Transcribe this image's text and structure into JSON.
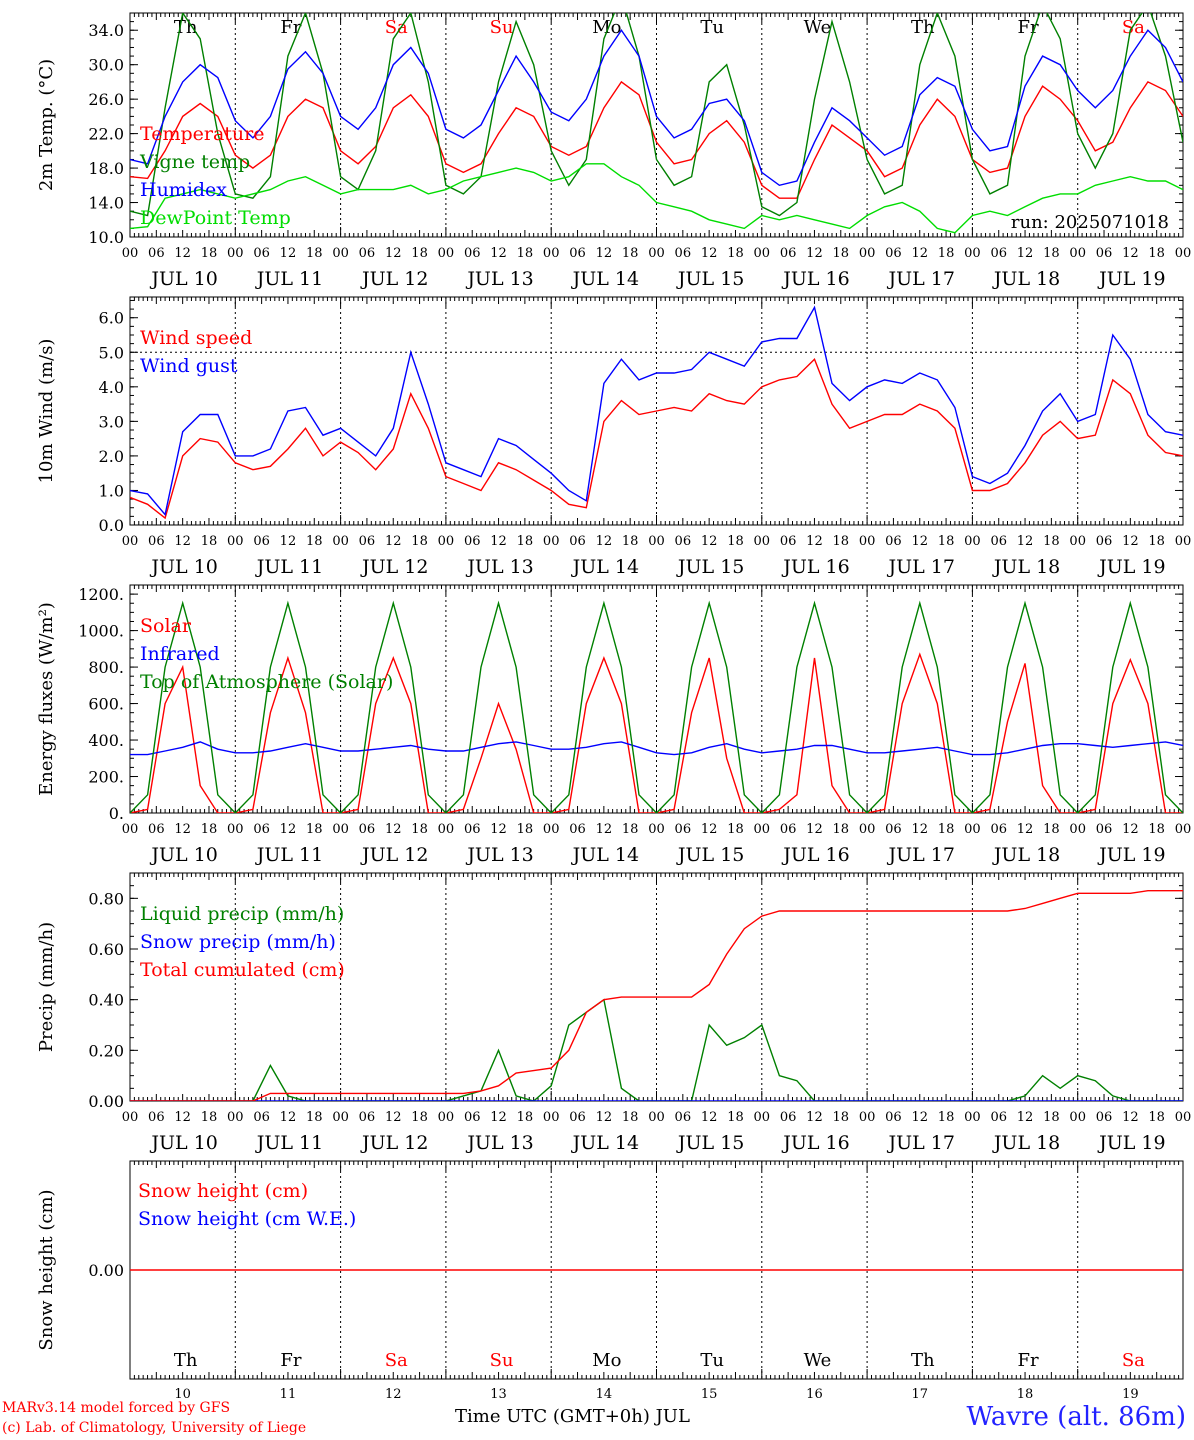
{
  "footer": {
    "credit_line1": "MARv3.14 model forced by GFS",
    "credit_line2": "(c) Lab. of Climatology, University of Liege",
    "xaxis_title": "Time UTC (GMT+0h) JUL",
    "station": "Wavre (alt. 86m)",
    "run": "run: 2025071018"
  },
  "colors": {
    "red": "#ff0000",
    "blue": "#0000ff",
    "green": "#008000",
    "lightgreen": "#00dd00",
    "weekend": "#ff0000",
    "weekday": "#000000"
  },
  "days": [
    {
      "abbr": "Th",
      "date": "JUL 10",
      "num": "10",
      "weekend": false
    },
    {
      "abbr": "Fr",
      "date": "JUL 11",
      "num": "11",
      "weekend": false
    },
    {
      "abbr": "Sa",
      "date": "JUL 12",
      "num": "12",
      "weekend": true
    },
    {
      "abbr": "Su",
      "date": "JUL 13",
      "num": "13",
      "weekend": true
    },
    {
      "abbr": "Mo",
      "date": "JUL 14",
      "num": "14",
      "weekend": false
    },
    {
      "abbr": "Tu",
      "date": "JUL 15",
      "num": "15",
      "weekend": false
    },
    {
      "abbr": "We",
      "date": "JUL 16",
      "num": "16",
      "weekend": false
    },
    {
      "abbr": "Th",
      "date": "JUL 17",
      "num": "17",
      "weekend": false
    },
    {
      "abbr": "Fr",
      "date": "JUL 18",
      "num": "18",
      "weekend": false
    },
    {
      "abbr": "Sa",
      "date": "JUL 19",
      "num": "19",
      "weekend": true
    }
  ],
  "hour_ticks": [
    "00",
    "06",
    "12",
    "18"
  ],
  "chart_data": [
    {
      "type": "line",
      "ylabel": "2m Temp. (°C)",
      "ylim": [
        10,
        36
      ],
      "yticks": [
        10.0,
        14.0,
        18.0,
        22.0,
        26.0,
        30.0,
        34.0
      ],
      "ytick_labels": [
        "10.0",
        "14.0",
        "18.0",
        "22.0",
        "26.0",
        "30.0",
        "34.0"
      ],
      "hgrid": [],
      "show_day_abbr": true,
      "x_hours_step": 6,
      "series": [
        {
          "name": "Temperature",
          "color": "#ff0000",
          "values": [
            17.0,
            16.8,
            20.0,
            24.0,
            25.5,
            24.0,
            19.5,
            18.0,
            19.5,
            24.0,
            26.0,
            25.0,
            20.0,
            18.5,
            20.5,
            25.0,
            26.5,
            24.0,
            18.5,
            17.5,
            18.5,
            22.0,
            25.0,
            24.0,
            20.5,
            19.5,
            20.5,
            25.0,
            28.0,
            26.5,
            21.0,
            18.5,
            19.0,
            22.0,
            23.5,
            21.0,
            16.0,
            14.5,
            14.5,
            19.0,
            23.0,
            21.5,
            20.0,
            17.0,
            18.0,
            23.0,
            26.0,
            24.0,
            19.0,
            17.5,
            18.0,
            24.0,
            27.5,
            26.0,
            23.5,
            20.0,
            21.0,
            25.0,
            28.0,
            27.0,
            24.0
          ]
        },
        {
          "name": "Vigne temp",
          "color": "#008000",
          "values": [
            13.0,
            12.5,
            25.0,
            36.0,
            33.0,
            22.0,
            15.0,
            14.5,
            17.0,
            31.0,
            36.0,
            29.0,
            17.0,
            15.5,
            20.0,
            33.0,
            36.0,
            28.0,
            16.0,
            15.0,
            17.0,
            28.0,
            35.0,
            30.0,
            20.0,
            16.0,
            19.0,
            33.0,
            38.0,
            31.0,
            19.0,
            16.0,
            17.0,
            28.0,
            30.0,
            23.0,
            13.5,
            12.5,
            14.0,
            26.0,
            35.0,
            28.0,
            19.0,
            15.0,
            16.0,
            30.0,
            36.0,
            31.0,
            19.0,
            15.0,
            16.0,
            31.0,
            37.0,
            33.0,
            22.0,
            18.0,
            22.0,
            34.0,
            37.0,
            31.0,
            21.0
          ]
        },
        {
          "name": "Humidex",
          "color": "#0000ff",
          "values": [
            19.0,
            18.5,
            24.0,
            28.0,
            30.0,
            28.5,
            23.5,
            21.5,
            24.0,
            29.5,
            31.5,
            29.0,
            24.0,
            22.5,
            25.0,
            30.0,
            32.0,
            29.0,
            22.5,
            21.5,
            23.0,
            27.0,
            31.0,
            28.0,
            24.5,
            23.5,
            26.0,
            31.0,
            34.0,
            31.0,
            24.0,
            21.5,
            22.5,
            25.5,
            26.0,
            23.5,
            17.5,
            16.0,
            16.5,
            21.0,
            25.0,
            23.5,
            21.5,
            19.5,
            20.5,
            26.5,
            28.5,
            27.5,
            22.5,
            20.0,
            20.5,
            27.5,
            31.0,
            30.0,
            27.0,
            25.0,
            27.0,
            31.0,
            34.0,
            32.0,
            28.0
          ]
        },
        {
          "name": "DewPoint Temp",
          "color": "#00dd00",
          "values": [
            11.0,
            11.2,
            14.5,
            15.0,
            15.5,
            15.0,
            14.5,
            15.0,
            15.5,
            16.5,
            17.0,
            16.0,
            15.0,
            15.5,
            15.5,
            15.5,
            16.0,
            15.0,
            15.5,
            16.5,
            17.0,
            17.5,
            18.0,
            17.5,
            16.5,
            17.0,
            18.5,
            18.5,
            17.0,
            16.0,
            14.0,
            13.5,
            13.0,
            12.0,
            11.5,
            11.0,
            12.5,
            12.0,
            12.5,
            12.0,
            11.5,
            11.0,
            12.5,
            13.5,
            14.0,
            13.0,
            11.0,
            10.5,
            12.5,
            13.0,
            12.5,
            13.5,
            14.5,
            15.0,
            15.0,
            16.0,
            16.5,
            17.0,
            16.5,
            16.5,
            15.5
          ]
        }
      ]
    },
    {
      "type": "line",
      "ylabel": "10m Wind (m/s)",
      "ylim": [
        0,
        6.6
      ],
      "yticks": [
        0.0,
        1.0,
        2.0,
        3.0,
        4.0,
        5.0,
        6.0
      ],
      "ytick_labels": [
        "0.0",
        "1.0",
        "2.0",
        "3.0",
        "4.0",
        "5.0",
        "6.0"
      ],
      "hgrid": [
        5.0
      ],
      "show_day_abbr": false,
      "x_hours_step": 6,
      "series": [
        {
          "name": "Wind speed",
          "color": "#ff0000",
          "values": [
            0.8,
            0.6,
            0.2,
            2.0,
            2.5,
            2.4,
            1.8,
            1.6,
            1.7,
            2.2,
            2.8,
            2.0,
            2.4,
            2.1,
            1.6,
            2.2,
            3.8,
            2.8,
            1.4,
            1.2,
            1.0,
            1.8,
            1.6,
            1.3,
            1.0,
            0.6,
            0.5,
            3.0,
            3.6,
            3.2,
            3.3,
            3.4,
            3.3,
            3.8,
            3.6,
            3.5,
            4.0,
            4.2,
            4.3,
            4.8,
            3.5,
            2.8,
            3.0,
            3.2,
            3.2,
            3.5,
            3.3,
            2.8,
            1.0,
            1.0,
            1.2,
            1.8,
            2.6,
            3.0,
            2.5,
            2.6,
            4.2,
            3.8,
            2.6,
            2.1,
            2.0
          ]
        },
        {
          "name": "Wind gust",
          "color": "#0000ff",
          "values": [
            1.0,
            0.9,
            0.3,
            2.7,
            3.2,
            3.2,
            2.0,
            2.0,
            2.2,
            3.3,
            3.4,
            2.6,
            2.8,
            2.4,
            2.0,
            2.8,
            5.0,
            3.5,
            1.8,
            1.6,
            1.4,
            2.5,
            2.3,
            1.9,
            1.5,
            1.0,
            0.7,
            4.1,
            4.8,
            4.2,
            4.4,
            4.4,
            4.5,
            5.0,
            4.8,
            4.6,
            5.3,
            5.4,
            5.4,
            6.3,
            4.1,
            3.6,
            4.0,
            4.2,
            4.1,
            4.4,
            4.2,
            3.4,
            1.4,
            1.2,
            1.5,
            2.3,
            3.3,
            3.8,
            3.0,
            3.2,
            5.5,
            4.8,
            3.2,
            2.7,
            2.6
          ]
        }
      ]
    },
    {
      "type": "line",
      "ylabel": "Energy fluxes (W/m²)",
      "ylim": [
        0,
        1250
      ],
      "yticks": [
        0,
        200,
        400,
        600,
        800,
        1000,
        1200
      ],
      "ytick_labels": [
        "0.",
        "200.",
        "400.",
        "600.",
        "800.",
        "1000.",
        "1200."
      ],
      "hgrid": [],
      "show_day_abbr": false,
      "x_hours_step": 6,
      "series": [
        {
          "name": "Solar",
          "color": "#ff0000",
          "values": [
            0,
            20,
            600,
            800,
            150,
            0,
            0,
            20,
            550,
            850,
            550,
            0,
            0,
            20,
            600,
            850,
            600,
            0,
            0,
            20,
            300,
            600,
            350,
            0,
            0,
            20,
            600,
            850,
            600,
            0,
            0,
            20,
            550,
            850,
            300,
            0,
            0,
            20,
            100,
            850,
            150,
            0,
            0,
            20,
            600,
            870,
            600,
            0,
            0,
            20,
            500,
            820,
            150,
            0,
            0,
            20,
            600,
            840,
            600,
            0,
            0
          ]
        },
        {
          "name": "Infrared",
          "color": "#0000ff",
          "values": [
            320,
            320,
            340,
            360,
            390,
            350,
            330,
            330,
            340,
            360,
            380,
            360,
            340,
            340,
            350,
            360,
            370,
            350,
            340,
            340,
            360,
            380,
            390,
            370,
            350,
            350,
            360,
            380,
            390,
            360,
            330,
            320,
            330,
            360,
            380,
            350,
            330,
            340,
            350,
            370,
            370,
            350,
            330,
            330,
            340,
            350,
            360,
            340,
            320,
            320,
            330,
            350,
            370,
            380,
            380,
            370,
            360,
            370,
            380,
            390,
            370
          ]
        },
        {
          "name": "Top of Atmosphere (Solar)",
          "color": "#008000",
          "values": [
            0,
            100,
            800,
            1150,
            800,
            100,
            0,
            100,
            800,
            1150,
            800,
            100,
            0,
            100,
            800,
            1150,
            800,
            100,
            0,
            100,
            800,
            1150,
            800,
            100,
            0,
            100,
            800,
            1150,
            800,
            100,
            0,
            100,
            800,
            1150,
            800,
            100,
            0,
            100,
            800,
            1150,
            800,
            100,
            0,
            100,
            800,
            1150,
            800,
            100,
            0,
            100,
            800,
            1150,
            800,
            100,
            0,
            100,
            800,
            1150,
            800,
            100,
            0
          ]
        }
      ]
    },
    {
      "type": "line",
      "ylabel": "Precip (mm/h)",
      "ylim": [
        0,
        0.9
      ],
      "yticks": [
        0.0,
        0.2,
        0.4,
        0.6,
        0.8
      ],
      "ytick_labels": [
        "0.00",
        "0.20",
        "0.40",
        "0.60",
        "0.80"
      ],
      "hgrid": [],
      "show_day_abbr": false,
      "x_hours_step": 6,
      "series": [
        {
          "name": "Liquid precip (mm/h)",
          "color": "#008000",
          "values": [
            0,
            0,
            0,
            0,
            0,
            0,
            0,
            0,
            0.14,
            0.02,
            0,
            0,
            0,
            0,
            0,
            0,
            0,
            0,
            0,
            0.02,
            0.04,
            0.2,
            0.02,
            0,
            0.06,
            0.3,
            0.35,
            0.4,
            0.05,
            0,
            0,
            0,
            0,
            0.3,
            0.22,
            0.25,
            0.3,
            0.1,
            0.08,
            0,
            0,
            0,
            0,
            0,
            0,
            0,
            0,
            0,
            0,
            0,
            0,
            0.02,
            0.1,
            0.05,
            0.1,
            0.08,
            0.02,
            0,
            0,
            0,
            0
          ]
        },
        {
          "name": "Snow precip (mm/h)",
          "color": "#0000ff",
          "values": [
            0,
            0,
            0,
            0,
            0,
            0,
            0,
            0,
            0,
            0,
            0,
            0,
            0,
            0,
            0,
            0,
            0,
            0,
            0,
            0,
            0,
            0,
            0,
            0,
            0,
            0,
            0,
            0,
            0,
            0,
            0,
            0,
            0,
            0,
            0,
            0,
            0,
            0,
            0,
            0,
            0,
            0,
            0,
            0,
            0,
            0,
            0,
            0,
            0,
            0,
            0,
            0,
            0,
            0,
            0,
            0,
            0,
            0,
            0,
            0,
            0
          ]
        },
        {
          "name": "Total cumulated (cm)",
          "color": "#ff0000",
          "values": [
            0,
            0,
            0,
            0,
            0,
            0,
            0,
            0,
            0.03,
            0.03,
            0.03,
            0.03,
            0.03,
            0.03,
            0.03,
            0.03,
            0.03,
            0.03,
            0.03,
            0.03,
            0.04,
            0.06,
            0.11,
            0.12,
            0.13,
            0.2,
            0.35,
            0.4,
            0.41,
            0.41,
            0.41,
            0.41,
            0.41,
            0.46,
            0.58,
            0.68,
            0.73,
            0.75,
            0.75,
            0.75,
            0.75,
            0.75,
            0.75,
            0.75,
            0.75,
            0.75,
            0.75,
            0.75,
            0.75,
            0.75,
            0.75,
            0.76,
            0.78,
            0.8,
            0.82,
            0.82,
            0.82,
            0.82,
            0.83,
            0.83,
            0.83
          ]
        }
      ]
    },
    {
      "type": "line",
      "ylabel": "Snow height (cm)",
      "ylim": [
        -1,
        1
      ],
      "yticks": [
        0.0
      ],
      "ytick_labels": [
        "0.00"
      ],
      "hgrid": [],
      "show_day_abbr": false,
      "x_hours_step": 6,
      "series": [
        {
          "name": "Snow height (cm)",
          "color": "#ff0000",
          "values": [
            0,
            0,
            0,
            0,
            0,
            0,
            0,
            0,
            0,
            0,
            0,
            0,
            0,
            0,
            0,
            0,
            0,
            0,
            0,
            0,
            0,
            0,
            0,
            0,
            0,
            0,
            0,
            0,
            0,
            0,
            0,
            0,
            0,
            0,
            0,
            0,
            0,
            0,
            0,
            0,
            0,
            0,
            0,
            0,
            0,
            0,
            0,
            0,
            0,
            0,
            0,
            0,
            0,
            0,
            0,
            0,
            0,
            0,
            0,
            0,
            0
          ]
        },
        {
          "name": "Snow height (cm W.E.)",
          "color": "#0000ff",
          "values": []
        }
      ]
    }
  ]
}
